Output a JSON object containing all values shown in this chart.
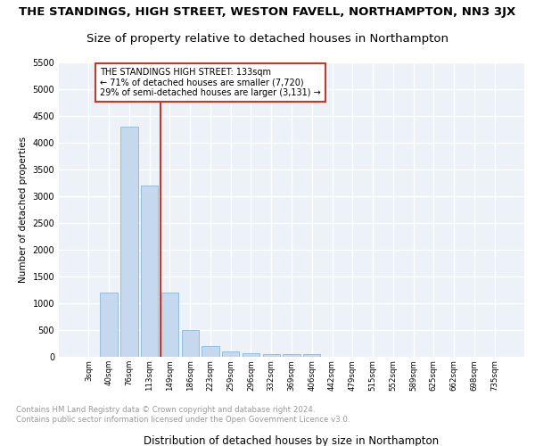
{
  "title1": "THE STANDINGS, HIGH STREET, WESTON FAVELL, NORTHAMPTON, NN3 3JX",
  "title2": "Size of property relative to detached houses in Northampton",
  "xlabel": "Distribution of detached houses by size in Northampton",
  "ylabel": "Number of detached properties",
  "footer": "Contains HM Land Registry data © Crown copyright and database right 2024.\nContains public sector information licensed under the Open Government Licence v3.0.",
  "bin_labels": [
    "3sqm",
    "40sqm",
    "76sqm",
    "113sqm",
    "149sqm",
    "186sqm",
    "223sqm",
    "259sqm",
    "296sqm",
    "332sqm",
    "369sqm",
    "406sqm",
    "442sqm",
    "479sqm",
    "515sqm",
    "552sqm",
    "589sqm",
    "625sqm",
    "662sqm",
    "698sqm",
    "735sqm"
  ],
  "bar_values": [
    0,
    1200,
    4300,
    3200,
    1200,
    500,
    200,
    100,
    75,
    50,
    50,
    50,
    0,
    0,
    0,
    0,
    0,
    0,
    0,
    0,
    0
  ],
  "bar_color": "#c5d8ed",
  "bar_edge_color": "#7aafd4",
  "ylim": [
    0,
    5500
  ],
  "yticks": [
    0,
    500,
    1000,
    1500,
    2000,
    2500,
    3000,
    3500,
    4000,
    4500,
    5000,
    5500
  ],
  "annotation_title": "THE STANDINGS HIGH STREET: 133sqm",
  "annotation_line1": "← 71% of detached houses are smaller (7,720)",
  "annotation_line2": "29% of semi-detached houses are larger (3,131) →",
  "bg_color": "#edf2f9",
  "grid_color": "#ffffff",
  "title1_fontsize": 9.5,
  "title2_fontsize": 9.5,
  "red_line_color": "#c0392b"
}
